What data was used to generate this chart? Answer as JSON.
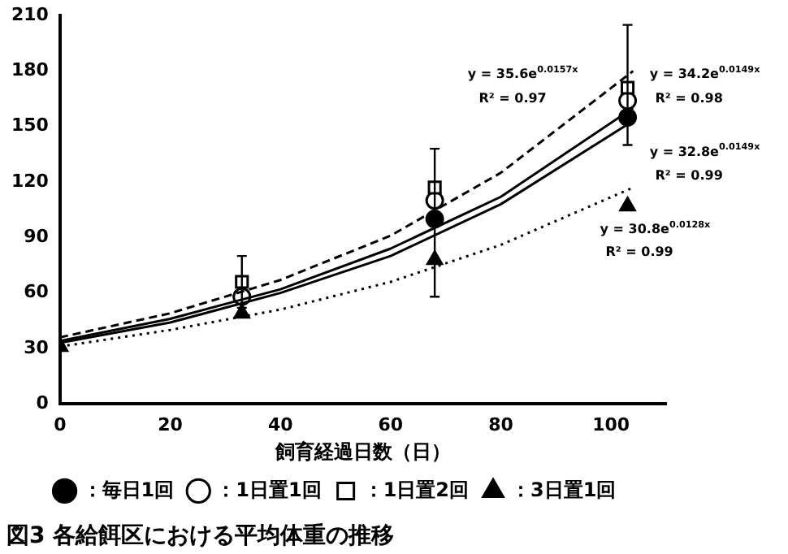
{
  "chart_data": {
    "type": "scatter",
    "title": "図3 各給餌区における平均体重の推移",
    "xlabel": "飼育経過日数（日）",
    "xlim": [
      0,
      110
    ],
    "xticks": [
      0,
      20,
      40,
      60,
      80,
      100
    ],
    "ylim": [
      0,
      210
    ],
    "yticks": [
      0,
      30,
      60,
      90,
      120,
      150,
      180,
      210
    ],
    "grid": false,
    "legend": "bottom",
    "series": [
      {
        "name": "：毎日1回",
        "marker": "circle",
        "color": "#000000",
        "x": [
          68,
          103
        ],
        "values": [
          100,
          155
        ]
      },
      {
        "name": "：1日置1回",
        "marker": "circle",
        "color": "#ffffff",
        "x": [
          33,
          68,
          103
        ],
        "values": [
          58,
          110,
          164
        ],
        "errors": [
          null,
          null,
          [
            140,
            205
          ]
        ]
      },
      {
        "name": "：1日置2回",
        "marker": "square",
        "color": "#ffffff",
        "x": [
          33,
          68,
          103
        ],
        "values": [
          66,
          117,
          171
        ],
        "errors": [
          14,
          21,
          null
        ]
      },
      {
        "name": "：3日置1回",
        "marker": "triangle",
        "color": "#000000",
        "x": [
          0,
          33,
          68,
          103
        ],
        "values": [
          31,
          49,
          78,
          107
        ],
        "errors": [
          null,
          null,
          20,
          null
        ]
      },
      {
        "type": "line",
        "line_style": "solid",
        "color": "#000000",
        "x": [
          0,
          20,
          40,
          60,
          80,
          104
        ],
        "values": [
          33,
          44,
          60,
          80,
          108,
          153
        ]
      },
      {
        "type": "line",
        "line_style": "solid",
        "color": "#000000",
        "x": [
          0,
          20,
          40,
          60,
          80,
          104
        ],
        "values": [
          34,
          46,
          62,
          84,
          112,
          160
        ]
      },
      {
        "type": "line",
        "line_style": "dashed",
        "color": "#000000",
        "x": [
          0,
          20,
          40,
          60,
          80,
          104
        ],
        "values": [
          36,
          49,
          67,
          91,
          125,
          180
        ]
      },
      {
        "type": "line",
        "line_style": "dotted",
        "color": "#000000",
        "x": [
          0,
          20,
          40,
          60,
          80,
          104
        ],
        "values": [
          31,
          40,
          51,
          66,
          86,
          117
        ]
      }
    ],
    "annotations": [
      "y = 35.6e$^{0.0157x}$",
      "R² = 0.97",
      "y = 34.2e$^{0.0149x}$",
      "R² = 0.98",
      "y = 32.8e$^{0.0149x}$",
      "R² = 0.99",
      "y = 30.8e$^{0.0128x}$",
      "R² = 0.99"
    ]
  }
}
